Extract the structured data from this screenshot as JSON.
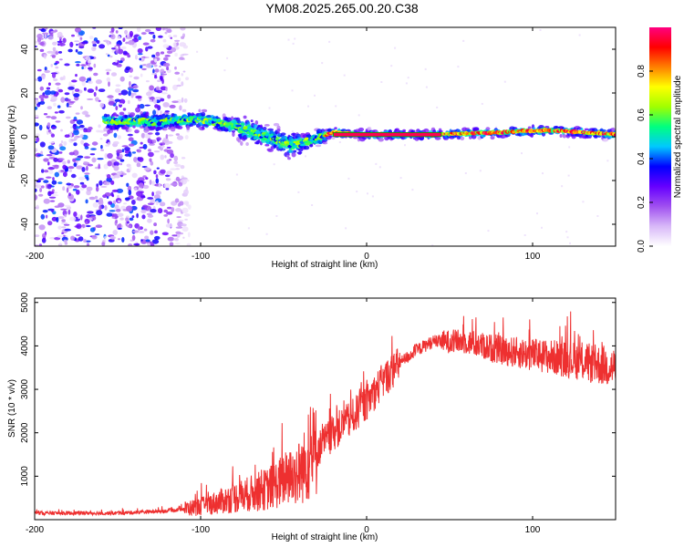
{
  "title": "YM08.2025.265.00.20.C38",
  "chart_data": [
    {
      "type": "heatmap",
      "xlabel": "Height of straight line (km)",
      "ylabel": "Frequency (Hz)",
      "xlim": [
        -200,
        150
      ],
      "ylim": [
        -50,
        50
      ],
      "xticks": [
        -200,
        -100,
        0,
        100
      ],
      "yticks": [
        -40,
        -20,
        0,
        20,
        40
      ],
      "colorbar": {
        "label": "Normalized spectral amplitude",
        "range": [
          0,
          1
        ],
        "ticks": [
          "0.0",
          "0.2",
          "0.4",
          "0.6",
          "0.8"
        ],
        "colors": [
          "#ffffff",
          "#d8b8f8",
          "#a050f0",
          "#6600ff",
          "#0000ff",
          "#00c8ff",
          "#00ff80",
          "#a0ff00",
          "#ffff00",
          "#ff8000",
          "#ff0000",
          "#ff0080"
        ]
      },
      "features": {
        "noise_region_x": [
          -200,
          -110
        ],
        "signal_track": [
          {
            "x": -155,
            "f": 7
          },
          {
            "x": -120,
            "f": 7
          },
          {
            "x": -100,
            "f": 8
          },
          {
            "x": -80,
            "f": 5
          },
          {
            "x": -60,
            "f": 0
          },
          {
            "x": -45,
            "f": -4
          },
          {
            "x": -35,
            "f": -2
          },
          {
            "x": -20,
            "f": 2
          },
          {
            "x": 0,
            "f": 1
          },
          {
            "x": 40,
            "f": 1
          },
          {
            "x": 80,
            "f": 2
          },
          {
            "x": 110,
            "f": 3
          },
          {
            "x": 150,
            "f": 1
          }
        ]
      }
    },
    {
      "type": "line",
      "xlabel": "Height of straight line (km)",
      "ylabel": "SNR (10 * v/v)",
      "xlim": [
        -200,
        150
      ],
      "ylim": [
        0,
        5100
      ],
      "xticks": [
        -200,
        -100,
        0,
        100
      ],
      "yticks": [
        1000,
        2000,
        3000,
        4000,
        5000
      ],
      "color": "#ee3030",
      "trend": {
        "x": [
          -200,
          -150,
          -120,
          -100,
          -80,
          -60,
          -40,
          -30,
          -20,
          -10,
          0,
          10,
          20,
          30,
          40,
          60,
          80,
          100,
          120,
          150
        ],
        "y": [
          150,
          150,
          200,
          300,
          500,
          700,
          1100,
          1600,
          2000,
          2300,
          2700,
          3200,
          3600,
          3900,
          4100,
          4100,
          3900,
          3800,
          3700,
          3500
        ]
      }
    }
  ]
}
